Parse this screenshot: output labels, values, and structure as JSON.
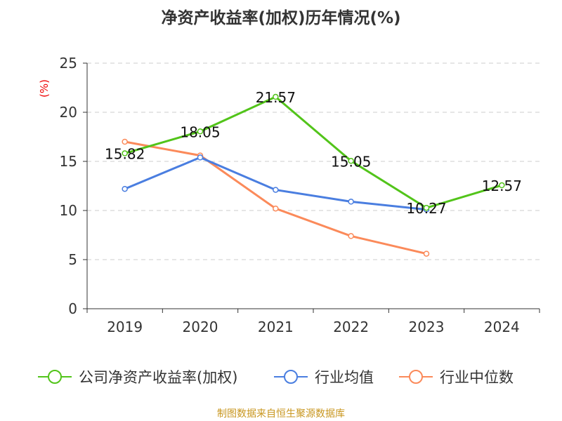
{
  "chart_data": {
    "type": "line",
    "title": "净资产收益率(加权)历年情况(%)",
    "ylabel": "(%)",
    "xlabel": "",
    "categories": [
      "2019",
      "2020",
      "2021",
      "2022",
      "2023",
      "2024"
    ],
    "ylim": [
      0,
      25
    ],
    "yticks": [
      0,
      5,
      10,
      15,
      20,
      25
    ],
    "grid": true,
    "legend_position": "bottom",
    "series": [
      {
        "name": "公司净资产收益率(加权)",
        "color": "#52c41a",
        "values": [
          15.82,
          18.05,
          21.57,
          15.05,
          10.27,
          12.57
        ],
        "labels": [
          "15.82",
          "18.05",
          "21.57",
          "15.05",
          "10.27",
          "12.57"
        ]
      },
      {
        "name": "行业均值",
        "color": "#4a7ee0",
        "values": [
          12.2,
          15.4,
          12.1,
          10.9,
          10.1,
          null
        ]
      },
      {
        "name": "行业中位数",
        "color": "#fb8a5a",
        "values": [
          17.0,
          15.6,
          10.2,
          7.4,
          5.6,
          null
        ]
      }
    ]
  },
  "source": "制图数据来自恒生聚源数据库"
}
